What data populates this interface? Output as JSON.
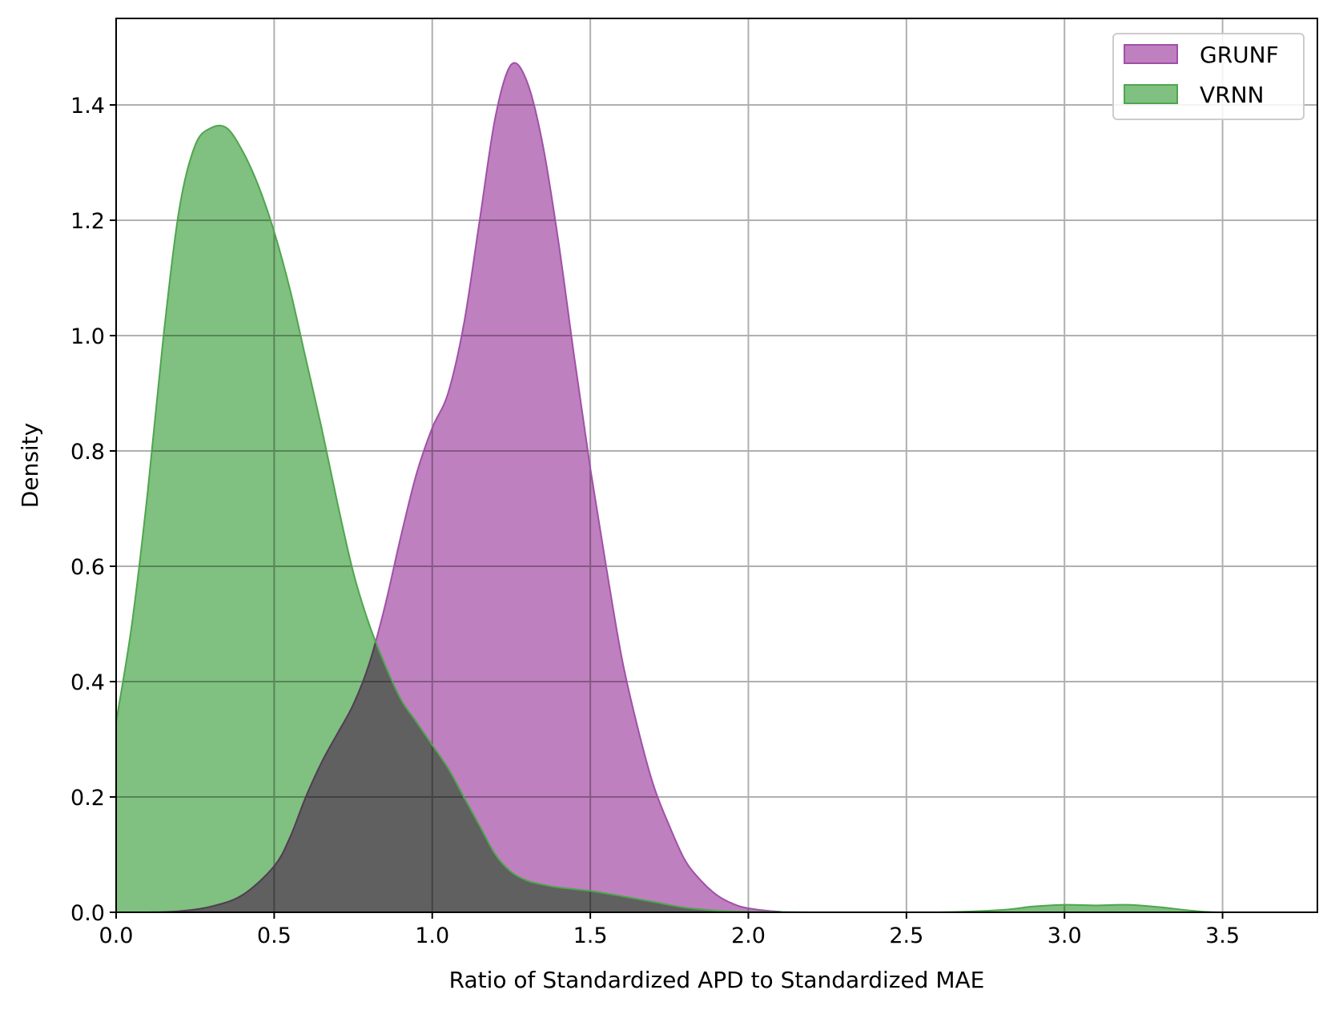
{
  "chart_data": {
    "type": "area",
    "title": "",
    "xlabel": "Ratio of Standardized APD to Standardized MAE",
    "ylabel": "Density",
    "xlim": [
      0,
      3.8
    ],
    "ylim": [
      0,
      1.55
    ],
    "xticks": [
      0.0,
      0.5,
      1.0,
      1.5,
      2.0,
      2.5,
      3.0,
      3.5
    ],
    "xtick_labels": [
      "0.0",
      "0.5",
      "1.0",
      "1.5",
      "2.0",
      "2.5",
      "3.0",
      "3.5"
    ],
    "yticks": [
      0.0,
      0.2,
      0.4,
      0.6,
      0.8,
      1.0,
      1.2,
      1.4
    ],
    "ytick_labels": [
      "0.0",
      "0.2",
      "0.4",
      "0.6",
      "0.8",
      "1.0",
      "1.2",
      "1.4"
    ],
    "grid": true,
    "legend_position": "top-right",
    "series": [
      {
        "name": "GRUNF",
        "fill": "#bf80bf",
        "stroke": "#a050a8",
        "points": [
          [
            0.0,
            0.0
          ],
          [
            0.1,
            0.0
          ],
          [
            0.2,
            0.002
          ],
          [
            0.3,
            0.01
          ],
          [
            0.4,
            0.03
          ],
          [
            0.5,
            0.08
          ],
          [
            0.55,
            0.13
          ],
          [
            0.6,
            0.2
          ],
          [
            0.65,
            0.26
          ],
          [
            0.7,
            0.31
          ],
          [
            0.75,
            0.36
          ],
          [
            0.8,
            0.43
          ],
          [
            0.85,
            0.53
          ],
          [
            0.9,
            0.65
          ],
          [
            0.95,
            0.76
          ],
          [
            1.0,
            0.84
          ],
          [
            1.05,
            0.9
          ],
          [
            1.1,
            1.02
          ],
          [
            1.15,
            1.2
          ],
          [
            1.2,
            1.38
          ],
          [
            1.25,
            1.47
          ],
          [
            1.3,
            1.44
          ],
          [
            1.35,
            1.33
          ],
          [
            1.4,
            1.16
          ],
          [
            1.45,
            0.96
          ],
          [
            1.5,
            0.77
          ],
          [
            1.55,
            0.6
          ],
          [
            1.6,
            0.44
          ],
          [
            1.65,
            0.32
          ],
          [
            1.7,
            0.22
          ],
          [
            1.75,
            0.15
          ],
          [
            1.8,
            0.09
          ],
          [
            1.85,
            0.055
          ],
          [
            1.9,
            0.03
          ],
          [
            1.95,
            0.015
          ],
          [
            2.0,
            0.007
          ],
          [
            2.1,
            0.001
          ],
          [
            2.2,
            0.0
          ],
          [
            3.8,
            0.0
          ]
        ]
      },
      {
        "name": "VRNN",
        "fill": "#80c080",
        "stroke": "#4ea64e",
        "points": [
          [
            0.0,
            0.33
          ],
          [
            0.05,
            0.5
          ],
          [
            0.1,
            0.73
          ],
          [
            0.15,
            1.0
          ],
          [
            0.2,
            1.22
          ],
          [
            0.25,
            1.33
          ],
          [
            0.3,
            1.36
          ],
          [
            0.35,
            1.36
          ],
          [
            0.4,
            1.32
          ],
          [
            0.45,
            1.26
          ],
          [
            0.5,
            1.18
          ],
          [
            0.55,
            1.08
          ],
          [
            0.6,
            0.96
          ],
          [
            0.65,
            0.84
          ],
          [
            0.7,
            0.71
          ],
          [
            0.75,
            0.59
          ],
          [
            0.8,
            0.5
          ],
          [
            0.85,
            0.43
          ],
          [
            0.9,
            0.37
          ],
          [
            0.95,
            0.33
          ],
          [
            1.0,
            0.29
          ],
          [
            1.05,
            0.25
          ],
          [
            1.1,
            0.2
          ],
          [
            1.15,
            0.15
          ],
          [
            1.2,
            0.1
          ],
          [
            1.25,
            0.07
          ],
          [
            1.3,
            0.055
          ],
          [
            1.35,
            0.048
          ],
          [
            1.4,
            0.043
          ],
          [
            1.5,
            0.037
          ],
          [
            1.6,
            0.028
          ],
          [
            1.7,
            0.018
          ],
          [
            1.8,
            0.008
          ],
          [
            1.9,
            0.003
          ],
          [
            2.0,
            0.001
          ],
          [
            2.2,
            0.0
          ],
          [
            2.6,
            0.0
          ],
          [
            2.8,
            0.004
          ],
          [
            2.9,
            0.01
          ],
          [
            3.0,
            0.013
          ],
          [
            3.1,
            0.012
          ],
          [
            3.2,
            0.013
          ],
          [
            3.3,
            0.009
          ],
          [
            3.4,
            0.003
          ],
          [
            3.5,
            0.0
          ],
          [
            3.8,
            0.0
          ]
        ]
      }
    ]
  }
}
